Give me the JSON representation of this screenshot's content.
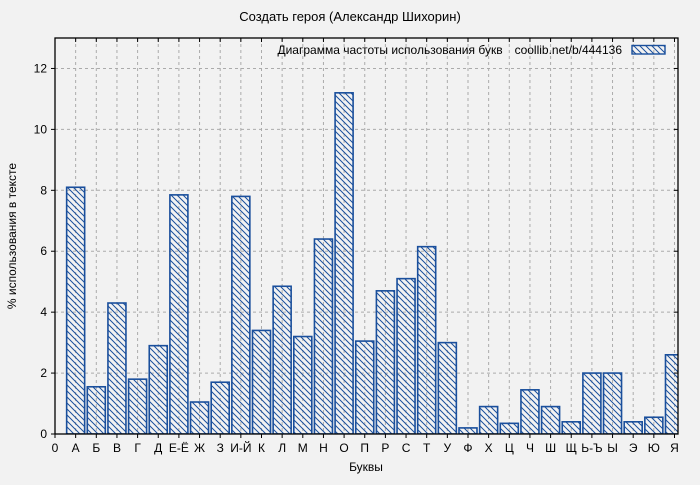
{
  "chart_data": {
    "type": "bar",
    "title": "Создать героя (Александр Шихорин)",
    "legend": {
      "label": "Диаграмма частоты использования букв",
      "source": "coollib.net/b/444136",
      "position": "top-right-inside",
      "swatch": "blue-hatched-rectangle"
    },
    "xlabel": "Буквы",
    "ylabel": "% использования в тексте",
    "x_origin_label": "0",
    "categories": [
      "А",
      "Б",
      "В",
      "Г",
      "Д",
      "Е-Ё",
      "Ж",
      "З",
      "И-Й",
      "К",
      "Л",
      "М",
      "Н",
      "О",
      "П",
      "Р",
      "С",
      "Т",
      "У",
      "Ф",
      "Х",
      "Ц",
      "Ч",
      "Ш",
      "Щ",
      "Ь-Ъ",
      "Ы",
      "Э",
      "Ю",
      "Я"
    ],
    "values": [
      8.1,
      1.55,
      4.3,
      1.8,
      2.9,
      7.85,
      1.05,
      1.7,
      7.8,
      3.4,
      4.85,
      3.2,
      6.4,
      11.2,
      3.05,
      4.7,
      5.1,
      6.15,
      3.0,
      0.2,
      0.9,
      0.35,
      1.45,
      0.9,
      0.4,
      2.0,
      2.0,
      0.4,
      0.55,
      2.6
    ],
    "yticks": [
      0,
      2,
      4,
      6,
      8,
      10,
      12
    ],
    "ylim": [
      0,
      13
    ],
    "grid": true,
    "legend_position": "top-right",
    "colors": {
      "bar_border": "#1a4f9c",
      "hatch": "#1a4f9c",
      "grid": "#ababab",
      "frame": "#000000",
      "background": "#f2f2f2",
      "text": "#000000"
    }
  }
}
